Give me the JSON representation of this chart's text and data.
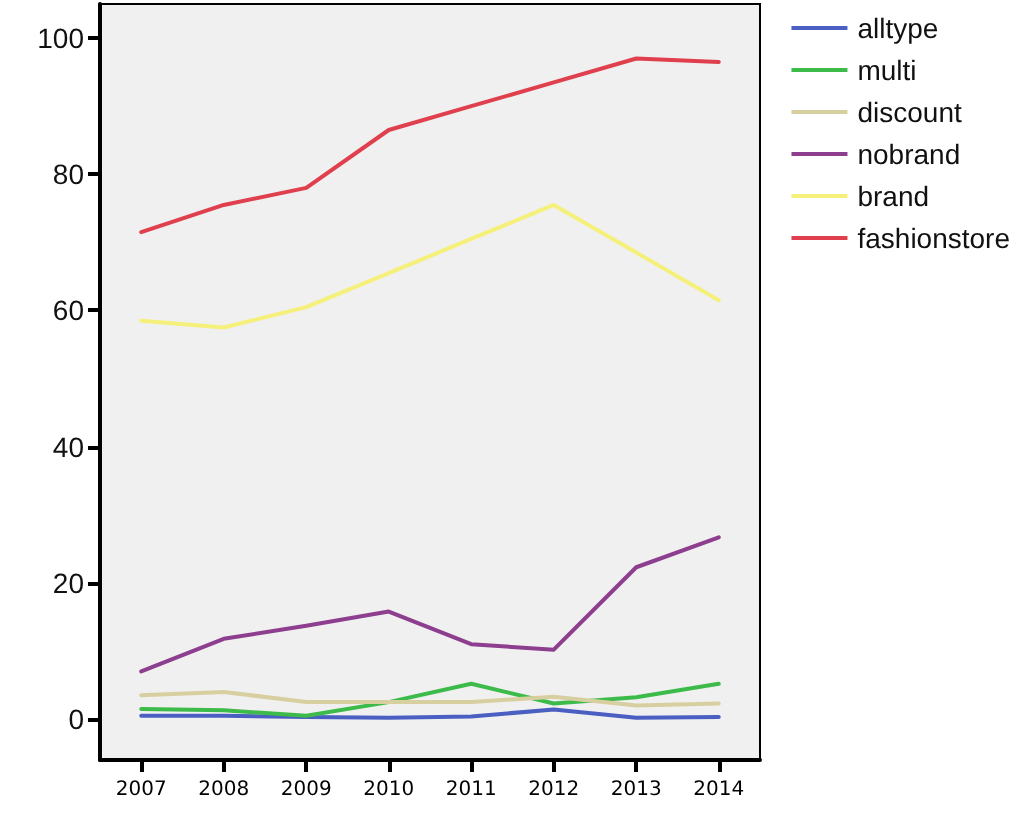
{
  "chart_data": {
    "type": "line",
    "categories": [
      "2007",
      "2008",
      "2009",
      "2010",
      "2011",
      "2012",
      "2013",
      "2014"
    ],
    "series": [
      {
        "name": "alltype",
        "color": "#4a5fc1",
        "values": [
          0.5,
          0.5,
          0.3,
          0.2,
          0.4,
          1.4,
          0.2,
          0.3
        ]
      },
      {
        "name": "multi",
        "color": "#3dbb4a",
        "values": [
          1.5,
          1.3,
          0.5,
          2.5,
          5.2,
          2.3,
          3.2,
          5.2
        ]
      },
      {
        "name": "discount",
        "color": "#d8cfa0",
        "values": [
          3.5,
          4,
          2.5,
          2.5,
          2.5,
          3.3,
          2,
          2.3
        ]
      },
      {
        "name": "nobrand",
        "color": "#8e3e8e",
        "values": [
          7,
          11.8,
          13.7,
          15.8,
          11,
          10.2,
          22.3,
          26.7
        ]
      },
      {
        "name": "brand",
        "color": "#f5f07a",
        "values": [
          58.5,
          57.5,
          60.5,
          65.5,
          70.5,
          75.5,
          68.5,
          61.5
        ]
      },
      {
        "name": "fashionstore",
        "color": "#e0404e",
        "values": [
          71.5,
          75.5,
          78,
          86.5,
          90,
          93.5,
          97,
          96.5
        ]
      }
    ],
    "ylim": [
      -6,
      105
    ],
    "yticks": [
      0,
      20,
      40,
      60,
      80,
      100
    ],
    "grid": false,
    "legend": "top right",
    "marker": "none",
    "line_style": "solid"
  }
}
